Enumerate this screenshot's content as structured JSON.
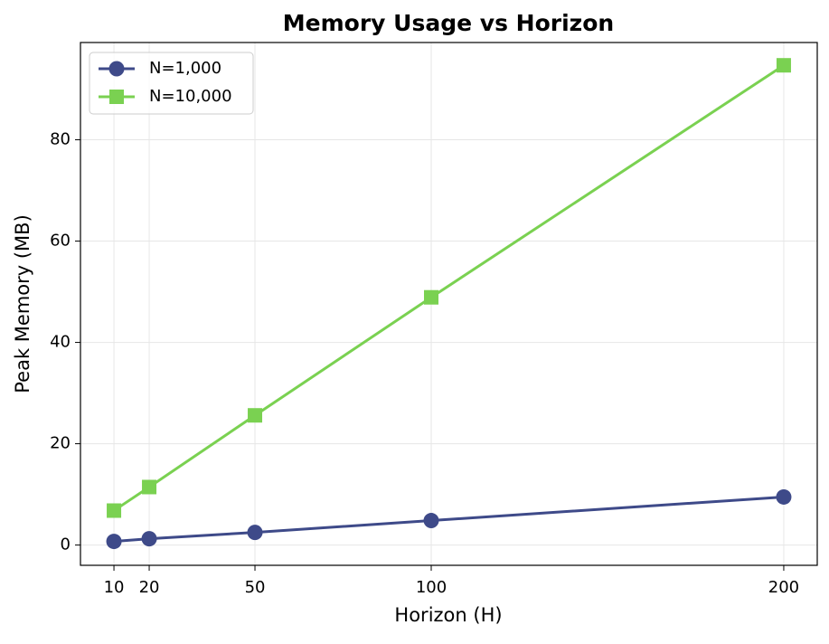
{
  "chart_data": {
    "type": "line",
    "title": "Memory Usage vs Horizon",
    "xlabel": "Horizon (H)",
    "ylabel": "Peak Memory (MB)",
    "x": [
      10,
      20,
      50,
      100,
      200
    ],
    "series": [
      {
        "name": "N=1,000",
        "color": "#3e4a89",
        "marker": "circle",
        "values": [
          0.72,
          1.25,
          2.5,
          4.83,
          9.49
        ]
      },
      {
        "name": "N=10,000",
        "color": "#7ad151",
        "marker": "square",
        "values": [
          6.8,
          11.45,
          25.6,
          48.9,
          94.7
        ]
      }
    ],
    "xlim": [
      0.5,
      209.5
    ],
    "ylim": [
      -4,
      99.2
    ],
    "xticks": [
      10,
      20,
      50,
      100,
      200
    ],
    "yticks": [
      0,
      20,
      40,
      60,
      80
    ],
    "grid": true,
    "legend": "upper left"
  }
}
